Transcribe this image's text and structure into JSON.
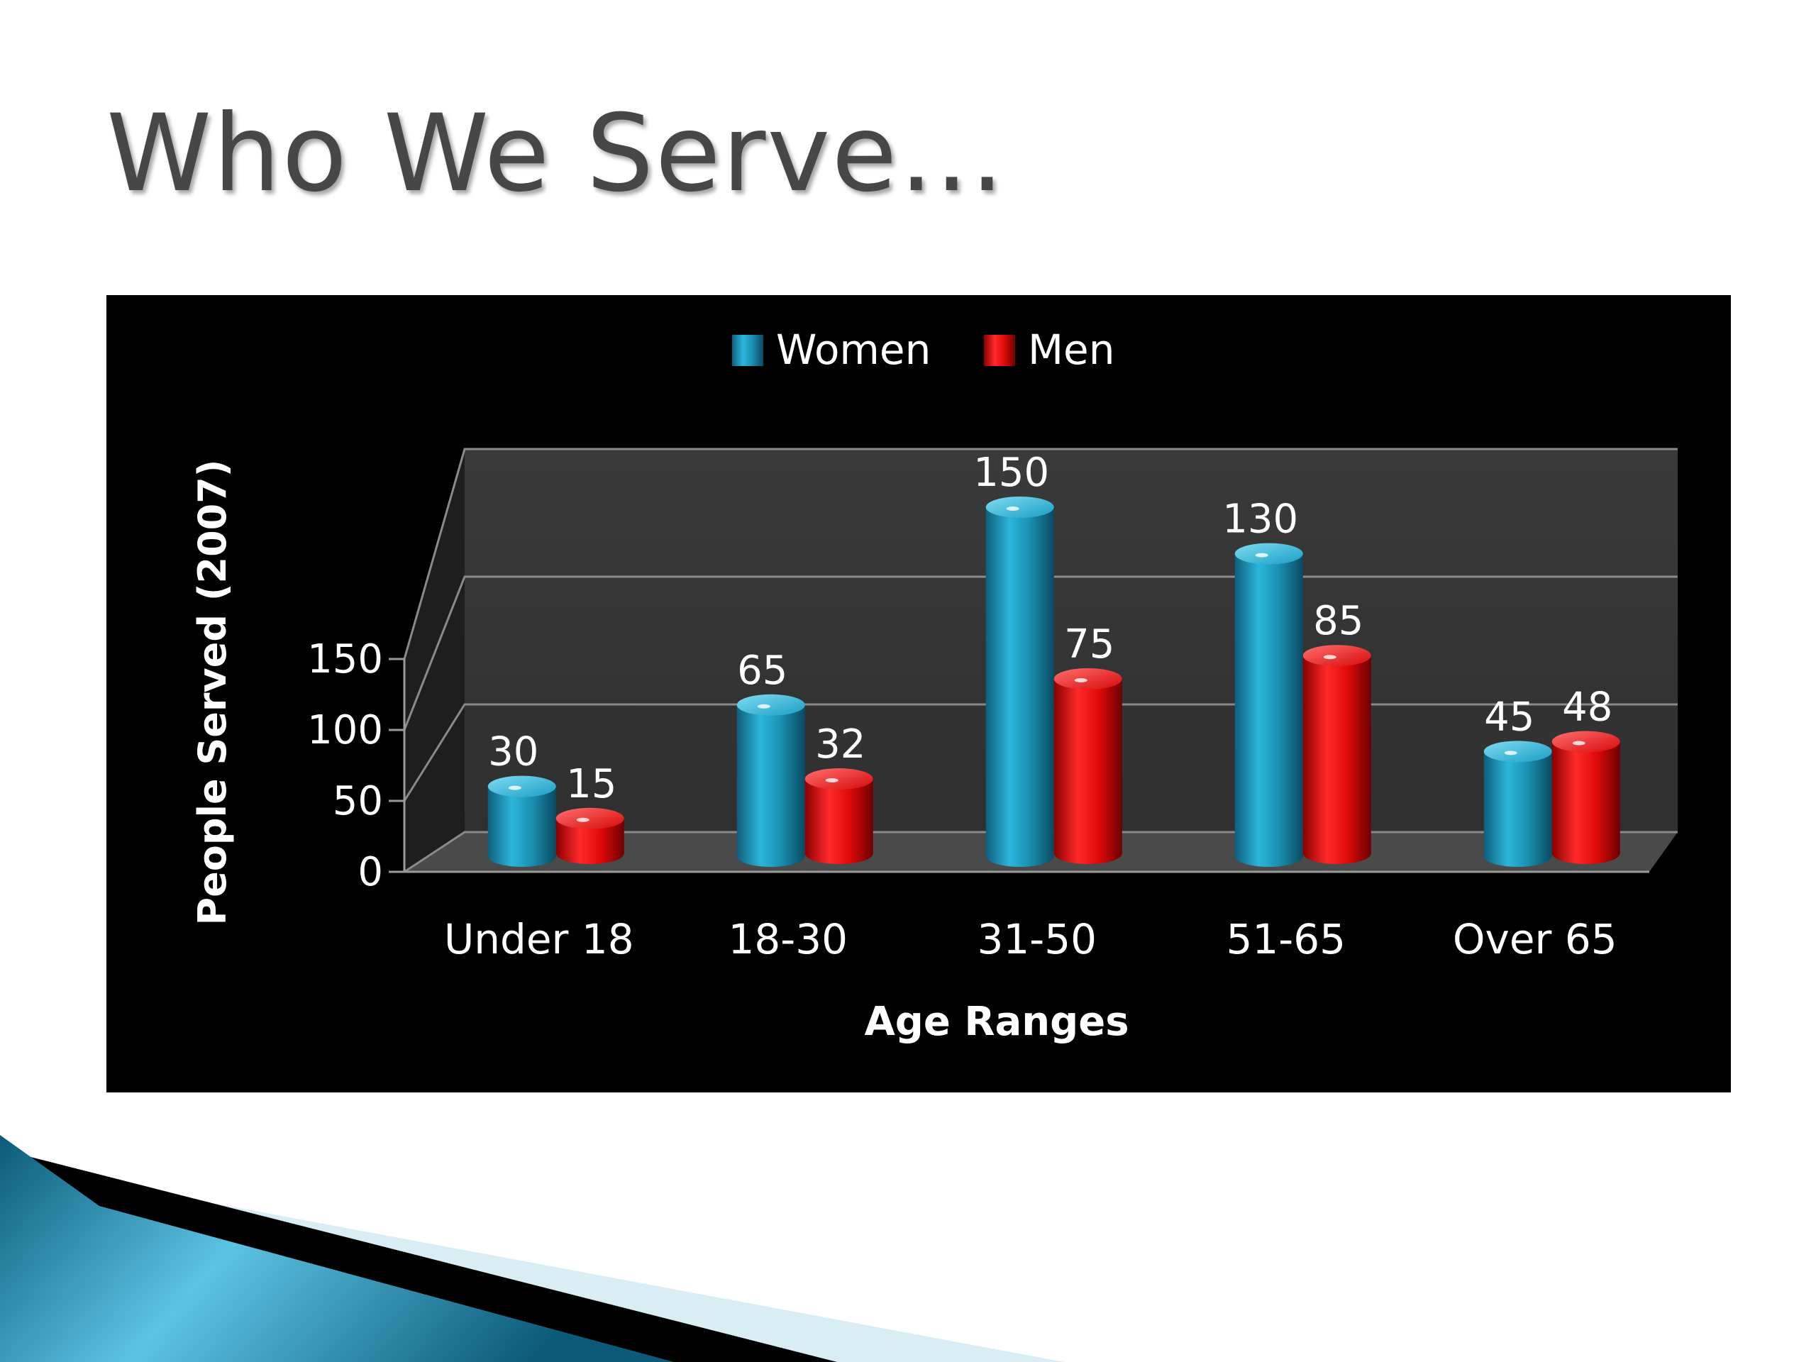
{
  "slide": {
    "title": "Who We Serve…"
  },
  "chart_data": {
    "type": "bar",
    "title": "",
    "xlabel": "Age Ranges",
    "ylabel": "People Served (2007)",
    "categories": [
      "Under 18",
      "18-30",
      "31-50",
      "51-65",
      "Over 65"
    ],
    "series": [
      {
        "name": "Women",
        "values": [
          30,
          65,
          150,
          130,
          45
        ],
        "color": "#1a8fb0"
      },
      {
        "name": "Men",
        "values": [
          15,
          32,
          75,
          85,
          48
        ],
        "color": "#e00a0a"
      }
    ],
    "y_ticks": [
      0,
      50,
      100,
      150
    ],
    "ylim": [
      0,
      150
    ],
    "grid": true,
    "legend": "top-center",
    "data_labels": true,
    "background": "#000000"
  }
}
